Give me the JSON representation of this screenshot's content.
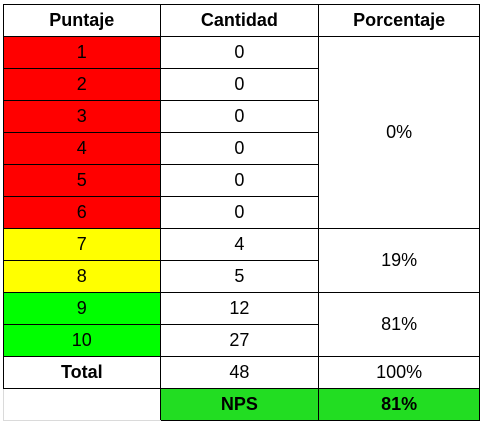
{
  "headers": {
    "score": "Puntaje",
    "count": "Cantidad",
    "percent": "Porcentaje"
  },
  "rows": [
    {
      "score": "1",
      "count": "0"
    },
    {
      "score": "2",
      "count": "0"
    },
    {
      "score": "3",
      "count": "0"
    },
    {
      "score": "4",
      "count": "0"
    },
    {
      "score": "5",
      "count": "0"
    },
    {
      "score": "6",
      "count": "0"
    },
    {
      "score": "7",
      "count": "4"
    },
    {
      "score": "8",
      "count": "5"
    },
    {
      "score": "9",
      "count": "12"
    },
    {
      "score": "10",
      "count": "27"
    }
  ],
  "groups": {
    "detractors_percent": "0%",
    "passives_percent": "19%",
    "promoters_percent": "81%"
  },
  "total": {
    "label": "Total",
    "count": "48",
    "percent": "100%"
  },
  "nps": {
    "label": "NPS",
    "value": "81%"
  },
  "colors": {
    "detractor": "#ff0000",
    "passive": "#ffff00",
    "promoter": "#00ff00",
    "nps_highlight": "#22dd22"
  }
}
